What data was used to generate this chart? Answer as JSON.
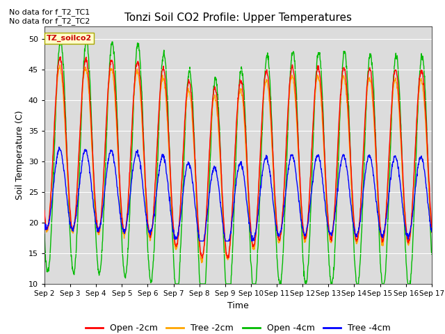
{
  "title": "Tonzi Soil CO2 Profile: Upper Temperatures",
  "ylabel": "Soil Temperature (C)",
  "xlabel": "Time",
  "ylim": [
    10,
    52
  ],
  "yticks": [
    10,
    15,
    20,
    25,
    30,
    35,
    40,
    45,
    50
  ],
  "background_color": "#dcdcdc",
  "text_lines": [
    "No data for f_T2_TC1",
    "No data for f_T2_TC2"
  ],
  "legend_label": "TZ_soilco2",
  "legend_entries": [
    "Open -2cm",
    "Tree -2cm",
    "Open -4cm",
    "Tree -4cm"
  ],
  "legend_colors": [
    "#ff0000",
    "#ffa500",
    "#00bb00",
    "#0000ff"
  ],
  "xtick_labels": [
    "Sep 2",
    "Sep 3",
    "Sep 4",
    "Sep 5",
    "Sep 6",
    "Sep 7",
    "Sep 8",
    "Sep 9",
    "Sep 10",
    "Sep 11",
    "Sep 12",
    "Sep 13",
    "Sep 14",
    "Sep 15",
    "Sep 16",
    "Sep 17"
  ],
  "line_colors": [
    "#ff0000",
    "#ffa500",
    "#00bb00",
    "#0000ff"
  ],
  "line_width": 1.0,
  "n_days": 15,
  "points_per_day": 96
}
